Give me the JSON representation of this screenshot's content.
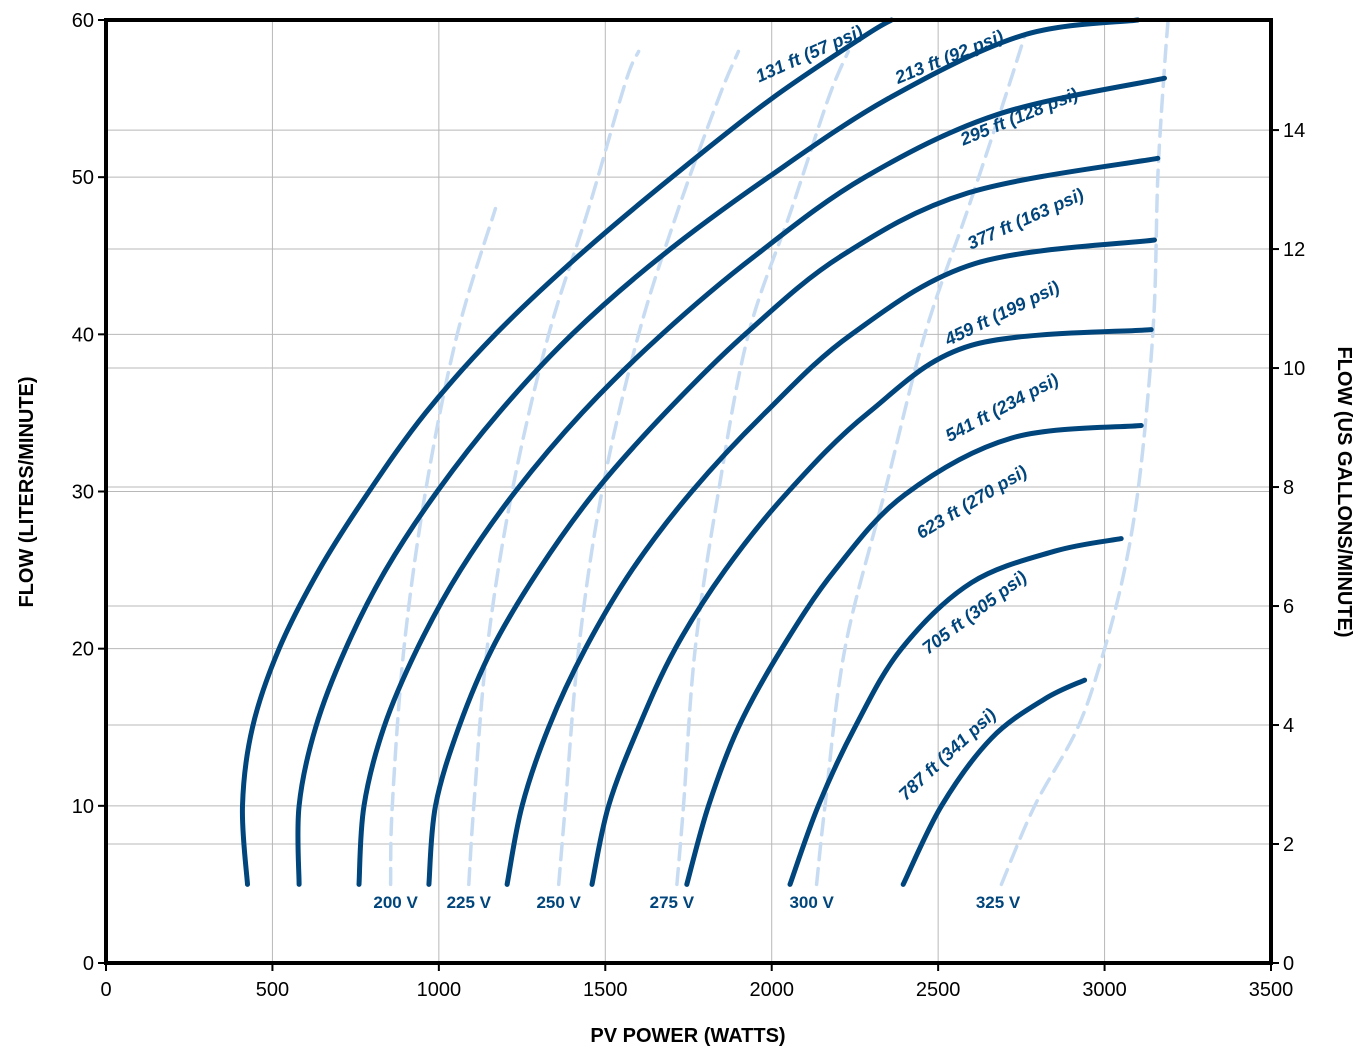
{
  "chart_data": {
    "type": "line",
    "title": "",
    "xlabel": "PV POWER (WATTS)",
    "ylabel": "FLOW (LITERS/MINUTE)",
    "y2label": "FLOW (US GALLONS/MINUTE)",
    "xlim": [
      0,
      3500
    ],
    "ylim": [
      0,
      60
    ],
    "y2lim": [
      0,
      15.85
    ],
    "grid": true,
    "x_ticks": [
      "0",
      "500",
      "1000",
      "1500",
      "2000",
      "2500",
      "3000",
      "3500"
    ],
    "y_ticks": [
      "0",
      "10",
      "20",
      "30",
      "40",
      "50",
      "60"
    ],
    "y2_ticks": [
      "0",
      "2",
      "4",
      "6",
      "8",
      "10",
      "12",
      "14"
    ],
    "colors": {
      "head_curve": "#00457c",
      "voltage_curve": "#c7dcf2",
      "label": "#00457c",
      "grid": "#b8b8b8",
      "frame": "#000000"
    },
    "series": [
      {
        "name": "131 ft (57 psi)",
        "label_at": [
          2120,
          57.5
        ],
        "label_angle": -24,
        "points": [
          [
            425,
            5
          ],
          [
            410,
            10
          ],
          [
            440,
            15
          ],
          [
            520,
            20
          ],
          [
            640,
            25
          ],
          [
            790,
            30
          ],
          [
            960,
            35
          ],
          [
            1170,
            40
          ],
          [
            1420,
            45
          ],
          [
            1700,
            50
          ],
          [
            2000,
            55
          ],
          [
            2280,
            59
          ],
          [
            2360,
            60
          ]
        ]
      },
      {
        "name": "213 ft (92 psi)",
        "label_at": [
          2540,
          57.3
        ],
        "label_angle": -22,
        "points": [
          [
            580,
            5
          ],
          [
            580,
            10
          ],
          [
            630,
            15
          ],
          [
            720,
            20
          ],
          [
            840,
            25
          ],
          [
            995,
            30
          ],
          [
            1180,
            35
          ],
          [
            1400,
            40
          ],
          [
            1670,
            45
          ],
          [
            1990,
            50
          ],
          [
            2350,
            55
          ],
          [
            2750,
            59
          ],
          [
            3100,
            60
          ]
        ]
      },
      {
        "name": "295 ft (128 psi)",
        "label_at": [
          2750,
          53.5
        ],
        "label_angle": -22,
        "points": [
          [
            760,
            5
          ],
          [
            775,
            10
          ],
          [
            835,
            15
          ],
          [
            935,
            20
          ],
          [
            1065,
            25
          ],
          [
            1230,
            30
          ],
          [
            1430,
            35
          ],
          [
            1670,
            40
          ],
          [
            1950,
            45
          ],
          [
            2280,
            50
          ],
          [
            2680,
            54
          ],
          [
            3180,
            56.3
          ]
        ]
      },
      {
        "name": "377 ft (163 psi)",
        "label_at": [
          2770,
          47
        ],
        "label_angle": -24,
        "points": [
          [
            970,
            5
          ],
          [
            990,
            10
          ],
          [
            1060,
            15
          ],
          [
            1160,
            20
          ],
          [
            1300,
            25
          ],
          [
            1470,
            30
          ],
          [
            1680,
            35
          ],
          [
            1920,
            40
          ],
          [
            2210,
            45
          ],
          [
            2590,
            49
          ],
          [
            3160,
            51.2
          ]
        ]
      },
      {
        "name": "459 ft (199 psi)",
        "label_at": [
          2700,
          41
        ],
        "label_angle": -26,
        "points": [
          [
            1205,
            5
          ],
          [
            1250,
            10
          ],
          [
            1330,
            15
          ],
          [
            1440,
            20
          ],
          [
            1580,
            25
          ],
          [
            1760,
            30
          ],
          [
            1980,
            35
          ],
          [
            2240,
            40
          ],
          [
            2610,
            44.5
          ],
          [
            3150,
            46
          ]
        ]
      },
      {
        "name": "541 ft (234 psi)",
        "label_at": [
          2700,
          35
        ],
        "label_angle": -28,
        "points": [
          [
            1460,
            5
          ],
          [
            1510,
            10
          ],
          [
            1600,
            15
          ],
          [
            1710,
            20
          ],
          [
            1860,
            25
          ],
          [
            2050,
            30
          ],
          [
            2290,
            35
          ],
          [
            2600,
            39.3
          ],
          [
            3140,
            40.3
          ]
        ]
      },
      {
        "name": "623 ft (270 psi)",
        "label_at": [
          2610,
          29
        ],
        "label_angle": -31,
        "points": [
          [
            1745,
            5
          ],
          [
            1810,
            10
          ],
          [
            1900,
            15
          ],
          [
            2030,
            20
          ],
          [
            2190,
            25
          ],
          [
            2400,
            29.8
          ],
          [
            2720,
            33.4
          ],
          [
            3110,
            34.2
          ]
        ]
      },
      {
        "name": "705 ft (305 psi)",
        "label_at": [
          2620,
          22
        ],
        "label_angle": -37,
        "points": [
          [
            2055,
            5
          ],
          [
            2140,
            10
          ],
          [
            2250,
            15
          ],
          [
            2390,
            20
          ],
          [
            2600,
            24.2
          ],
          [
            2850,
            26.2
          ],
          [
            3050,
            27
          ]
        ]
      },
      {
        "name": "787 ft (341 psi)",
        "label_at": [
          2540,
          13
        ],
        "label_angle": -43,
        "points": [
          [
            2395,
            5
          ],
          [
            2510,
            10
          ],
          [
            2660,
            14.3
          ],
          [
            2820,
            16.8
          ],
          [
            2940,
            18
          ]
        ]
      }
    ],
    "voltage_series": [
      {
        "name": "200 V",
        "label_at": [
          870,
          3.5
        ],
        "points": [
          [
            855,
            5
          ],
          [
            860,
            10
          ],
          [
            895,
            20
          ],
          [
            960,
            30
          ],
          [
            1055,
            40
          ],
          [
            1170,
            48
          ]
        ]
      },
      {
        "name": "225 V",
        "label_at": [
          1090,
          3.5
        ],
        "points": [
          [
            1090,
            5
          ],
          [
            1105,
            10
          ],
          [
            1145,
            20
          ],
          [
            1220,
            30
          ],
          [
            1330,
            40
          ],
          [
            1450,
            48
          ],
          [
            1560,
            56
          ],
          [
            1600,
            58
          ]
        ]
      },
      {
        "name": "250 V",
        "label_at": [
          1360,
          3.5
        ],
        "points": [
          [
            1360,
            5
          ],
          [
            1380,
            10
          ],
          [
            1420,
            20
          ],
          [
            1490,
            30
          ],
          [
            1600,
            40
          ],
          [
            1720,
            48
          ],
          [
            1840,
            55
          ],
          [
            1900,
            58
          ]
        ]
      },
      {
        "name": "275 V",
        "label_at": [
          1700,
          3.5
        ],
        "points": [
          [
            1715,
            5
          ],
          [
            1735,
            10
          ],
          [
            1770,
            20
          ],
          [
            1840,
            30
          ],
          [
            1930,
            40
          ],
          [
            2060,
            48
          ],
          [
            2170,
            55
          ],
          [
            2230,
            58
          ]
        ]
      },
      {
        "name": "300 V",
        "label_at": [
          2120,
          3.5
        ],
        "points": [
          [
            2135,
            5
          ],
          [
            2160,
            10
          ],
          [
            2220,
            20
          ],
          [
            2340,
            30
          ],
          [
            2460,
            40
          ],
          [
            2590,
            48
          ],
          [
            2700,
            55
          ],
          [
            2760,
            59
          ]
        ]
      },
      {
        "name": "325 V",
        "label_at": [
          2680,
          3.5
        ],
        "points": [
          [
            2690,
            5
          ],
          [
            2790,
            10
          ],
          [
            2920,
            15
          ],
          [
            3000,
            20
          ],
          [
            3060,
            25
          ],
          [
            3100,
            30
          ],
          [
            3130,
            36
          ],
          [
            3150,
            42
          ],
          [
            3160,
            50
          ],
          [
            3180,
            57
          ],
          [
            3195,
            61
          ]
        ]
      }
    ]
  }
}
